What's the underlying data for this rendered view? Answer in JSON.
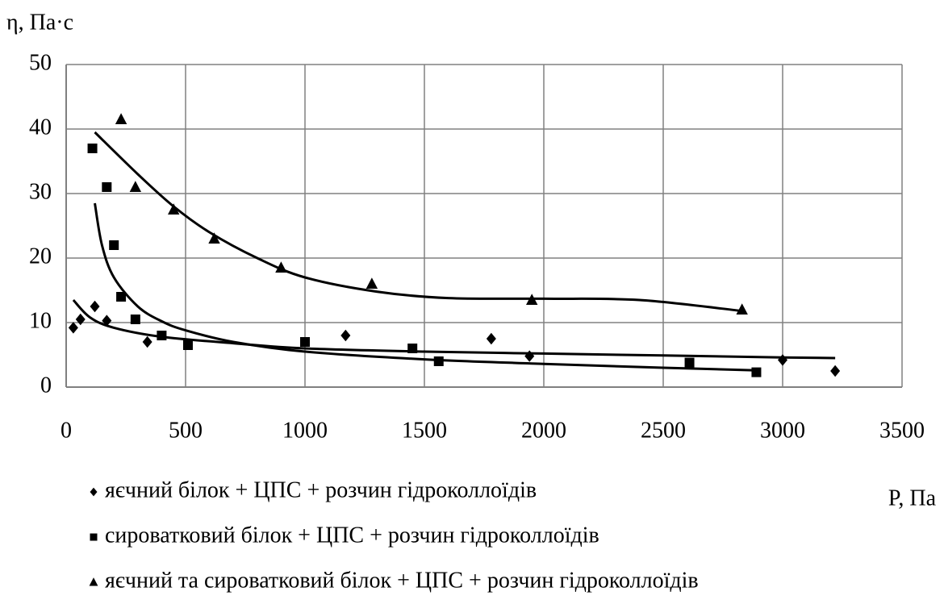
{
  "chart_data": {
    "type": "scatter",
    "ylabel": "η, Па·с",
    "xlabel": "P, Па",
    "xlim": [
      0,
      3500
    ],
    "xticks": [
      0,
      500,
      1000,
      1500,
      2000,
      2500,
      3000,
      3500
    ],
    "ylim": [
      0,
      50
    ],
    "yticks": [
      0,
      10,
      20,
      30,
      40,
      50
    ],
    "grid": true,
    "series": [
      {
        "name": "яєчний білок + ЦПС + розчин гідроколлоїдів",
        "color": "#000000",
        "marker": "diamond",
        "x": [
          30,
          60,
          120,
          170,
          340,
          1170,
          1780,
          1940,
          3000,
          3220
        ],
        "values": [
          9.2,
          10.5,
          12.5,
          10.3,
          7,
          8,
          7.5,
          4.8,
          4.2,
          2.5
        ],
        "trend": {
          "x": [
            30,
            100,
            200,
            400,
            700,
            1000,
            1500,
            2000,
            2500,
            3000,
            3220
          ],
          "values": [
            13.5,
            10.8,
            9.2,
            7.8,
            6.8,
            6.0,
            5.5,
            5.2,
            4.9,
            4.6,
            4.5
          ]
        }
      },
      {
        "name": "сироватковий білок + ЦПС + розчин гідроколлоїдів",
        "color": "#000000",
        "marker": "square",
        "x": [
          110,
          170,
          200,
          230,
          290,
          400,
          510,
          1000,
          1450,
          1560,
          2610,
          2890
        ],
        "values": [
          37,
          31,
          22,
          14,
          10.5,
          8,
          6.5,
          7,
          6,
          4,
          3.8,
          2.3
        ],
        "trend": {
          "x": [
            120,
            150,
            200,
            300,
            400,
            500,
            700,
            1000,
            1500,
            2000,
            2500,
            2890
          ],
          "values": [
            28.5,
            22,
            17,
            12.5,
            10.2,
            8.8,
            7,
            5.5,
            4.3,
            3.6,
            3,
            2.6
          ]
        }
      },
      {
        "name": "яєчний та сироватковий білок + ЦПС + розчин гідроколлоїдів",
        "color": "#000000",
        "marker": "triangle",
        "x": [
          230,
          290,
          450,
          620,
          900,
          1280,
          1950,
          2830
        ],
        "values": [
          41.5,
          31,
          27.5,
          23,
          18.5,
          16,
          13.5,
          12
        ],
        "trend": {
          "x": [
            120,
            300,
            450,
            600,
            800,
            1000,
            1300,
            1600,
            2000,
            2400,
            2830
          ],
          "values": [
            39.5,
            33,
            28,
            24,
            20,
            17,
            14.8,
            13.8,
            13.7,
            13.5,
            11.8
          ]
        }
      }
    ]
  }
}
